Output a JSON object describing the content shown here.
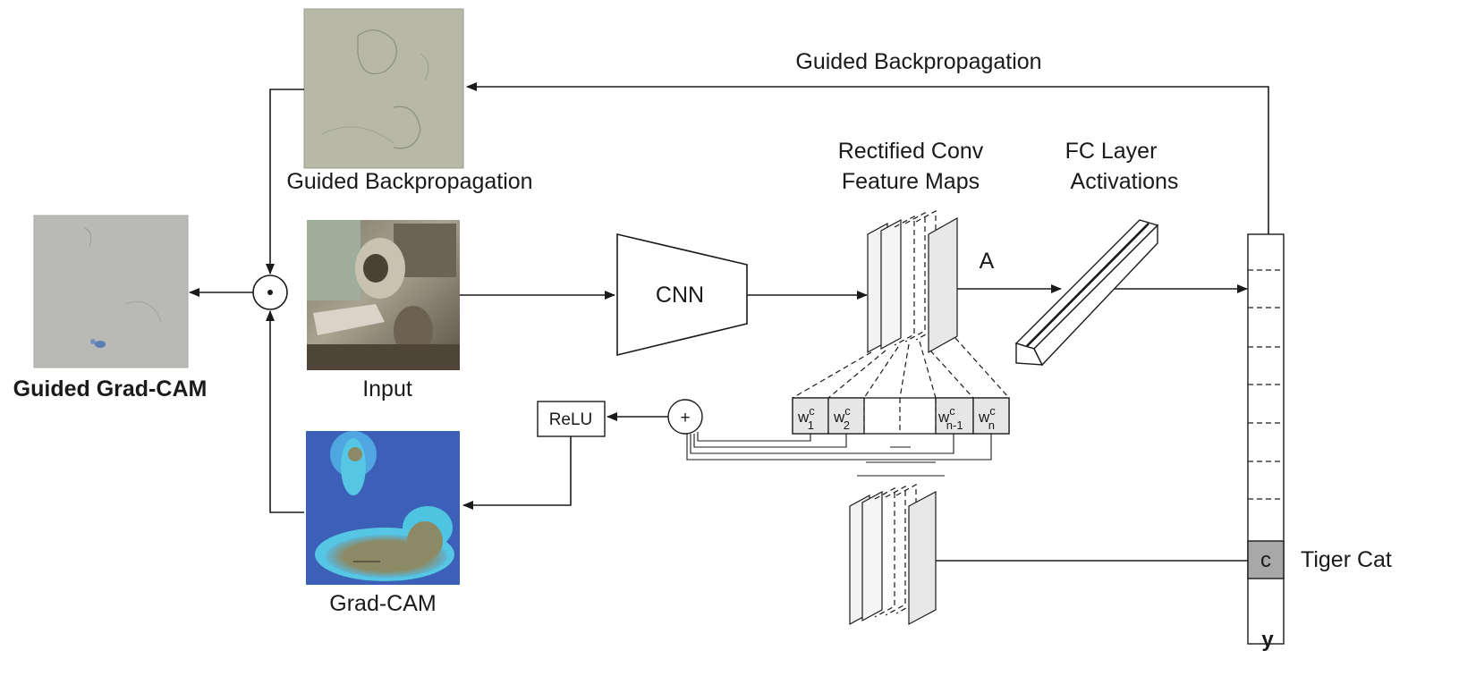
{
  "labels": {
    "top_arrow": "Guided Backpropagation",
    "guided_bp_caption": "Guided Backpropagation",
    "input_caption": "Input",
    "gradcam_caption": "Grad-CAM",
    "guided_gradcam_caption": "Guided Grad-CAM",
    "cnn": "CNN",
    "conv_maps_line1": "Rectified Conv",
    "conv_maps_line2": "Feature Maps",
    "fc_line1": "FC Layer",
    "fc_line2": "Activations",
    "a_label": "A",
    "relu": "ReLU",
    "plus": "+",
    "dot": "⊙",
    "class_cell": "c",
    "class_name": "Tiger Cat",
    "y_label": "y"
  },
  "weights": {
    "w1": {
      "base": "w",
      "sup": "c",
      "sub": "1"
    },
    "w2": {
      "base": "w",
      "sup": "c",
      "sub": "2"
    },
    "wn1": {
      "base": "w",
      "sup": "c",
      "sub": "n-1"
    },
    "wn": {
      "base": "w",
      "sup": "c",
      "sub": "n"
    }
  },
  "colors": {
    "line": "#1a1a1a",
    "guided_bg": "#b7b9a6",
    "guided_gc_bg": "#b9bab6",
    "heat_base": "#3c5fb8",
    "heat_cyan": "#4fc4e0",
    "heat_warm": "#8c8a66",
    "class_cell_fill": "#a8a8a8",
    "weight_fill": "#e6e6e6"
  }
}
